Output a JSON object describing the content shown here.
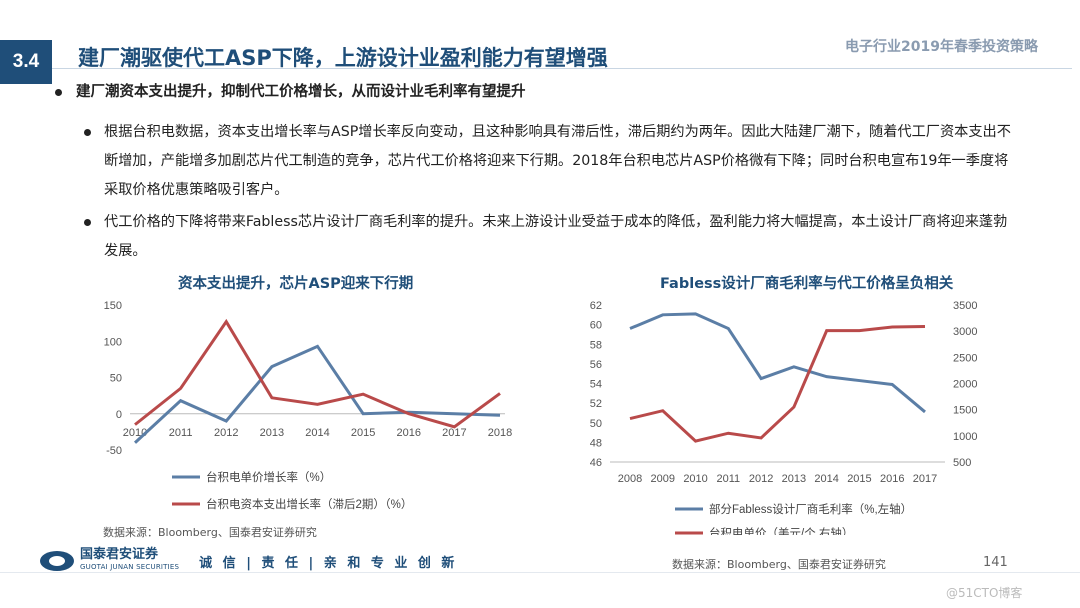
{
  "header": {
    "section": "3.4",
    "title": "建厂潮驱使代工ASP下降，上游设计业盈利能力有望增强",
    "report_name": "电子行业2019年春季投资策略"
  },
  "main_bullet": "建厂潮资本支出提升，抑制代工价格增长，从而设计业毛利率有望提升",
  "sub_bullets": [
    "根据台积电数据，资本支出增长率与ASP增长率反向变动，且这种影响具有滞后性，滞后期约为两年。因此大陆建厂潮下，随着代工厂资本支出不断增加，产能增多加剧芯片代工制造的竞争，芯片代工价格将迎来下行期。2018年台积电芯片ASP价格微有下降；同时台积电宣布19年一季度将采取价格优惠策略吸引客户。",
    "代工价格的下降将带来Fabless芯片设计厂商毛利率的提升。未来上游设计业受益于成本的降低，盈利能力将大幅提高，本土设计厂商将迎来蓬勃发展。"
  ],
  "colors": {
    "blue": "#5b7ea6",
    "red": "#b94a4a",
    "brand": "#1f4e79"
  },
  "chart_data": [
    {
      "type": "line",
      "title": "资本支出提升，芯片ASP迎来下行期",
      "x": [
        "2010",
        "2011",
        "2012",
        "2013",
        "2014",
        "2015",
        "2016",
        "2017",
        "2018"
      ],
      "ylim": [
        -50,
        150
      ],
      "yticks": [
        "-50",
        "0",
        "50",
        "100",
        "150"
      ],
      "series": [
        {
          "name": "台积电单价增长率（%）",
          "color": "#5b7ea6",
          "values": [
            -40,
            18,
            -10,
            65,
            93,
            0,
            2,
            0,
            -2
          ]
        },
        {
          "name": "台积电资本支出增长率（滞后2期）（%）",
          "color": "#b94a4a",
          "values": [
            -15,
            35,
            127,
            22,
            13,
            27,
            0,
            -18,
            28
          ]
        }
      ],
      "legend": "bottom",
      "source": "数据来源：Bloomberg、国泰君安证券研究"
    },
    {
      "type": "line",
      "title": "Fabless设计厂商毛利率与代工价格呈负相关",
      "x": [
        "2008",
        "2009",
        "2010",
        "2011",
        "2012",
        "2013",
        "2014",
        "2015",
        "2016",
        "2017"
      ],
      "ylim_left": [
        46,
        62
      ],
      "yticks_left": [
        "46",
        "48",
        "50",
        "52",
        "54",
        "56",
        "58",
        "60",
        "62"
      ],
      "ylim_right": [
        500,
        3500
      ],
      "yticks_right": [
        "500",
        "1000",
        "1500",
        "2000",
        "2500",
        "3000",
        "3500"
      ],
      "series": [
        {
          "name": "部分Fabless设计厂商毛利率（%,左轴）",
          "color": "#5b7ea6",
          "axis": "left",
          "values": [
            59.6,
            61,
            61.1,
            59.6,
            54.5,
            55.7,
            54.7,
            54.3,
            53.9,
            51.1
          ]
        },
        {
          "name": "台积电单价（美元/个,右轴）",
          "color": "#b94a4a",
          "axis": "right",
          "values": [
            1330,
            1480,
            900,
            1050,
            960,
            1550,
            3010,
            3010,
            3080,
            3090
          ]
        }
      ],
      "legend": "bottom",
      "source": "数据来源：Bloomberg、国泰君安证券研究"
    }
  ],
  "footer": {
    "logo_name": "国泰君安证券",
    "logo_sub": "GUOTAI JUNAN SECURITIES",
    "slogan": "诚 信 | 责 任 | 亲 和  专 业  创 新",
    "page": "141",
    "watermark": "@51CTO博客"
  }
}
